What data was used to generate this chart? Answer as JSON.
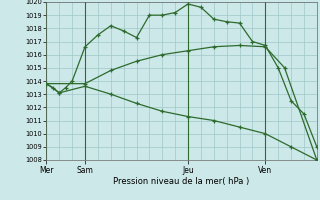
{
  "xlabel": "Pression niveau de la mer( hPa )",
  "ylim": [
    1008,
    1020
  ],
  "yticks": [
    1008,
    1009,
    1010,
    1011,
    1012,
    1013,
    1014,
    1015,
    1016,
    1017,
    1018,
    1019,
    1020
  ],
  "background_color": "#cde8e8",
  "plot_bg_color": "#cde8e8",
  "grid_color": "#a0c8c8",
  "line_color": "#2d6b2d",
  "day_labels": [
    "Mer",
    "Sam",
    "Jeu",
    "Ven"
  ],
  "day_positions": [
    0,
    3,
    11,
    17
  ],
  "xlim": [
    0,
    21
  ],
  "line1_x": [
    0,
    0.5,
    1,
    1.5,
    2,
    3,
    4,
    5,
    6,
    7,
    8,
    9,
    10,
    11,
    12,
    13,
    14,
    15,
    16,
    17,
    18,
    19,
    20,
    21
  ],
  "line1_y": [
    1013.8,
    1013.5,
    1013.1,
    1013.5,
    1014.0,
    1016.6,
    1017.5,
    1018.2,
    1017.8,
    1017.3,
    1019.0,
    1019.0,
    1019.2,
    1019.85,
    1019.6,
    1018.7,
    1018.5,
    1018.4,
    1017.0,
    1016.7,
    1015.0,
    1012.5,
    1011.5,
    1009.0
  ],
  "line2_x": [
    0,
    3,
    5,
    7,
    9,
    11,
    13,
    15,
    17,
    18.5,
    21
  ],
  "line2_y": [
    1013.8,
    1013.8,
    1014.8,
    1015.5,
    1016.0,
    1016.3,
    1016.6,
    1016.7,
    1016.6,
    1015.0,
    1008.0
  ],
  "line3_x": [
    0,
    1,
    3,
    5,
    7,
    9,
    11,
    13,
    15,
    17,
    19,
    21
  ],
  "line3_y": [
    1013.8,
    1013.1,
    1013.6,
    1013.0,
    1012.3,
    1011.7,
    1011.3,
    1011.0,
    1010.5,
    1010.0,
    1009.0,
    1008.0
  ]
}
